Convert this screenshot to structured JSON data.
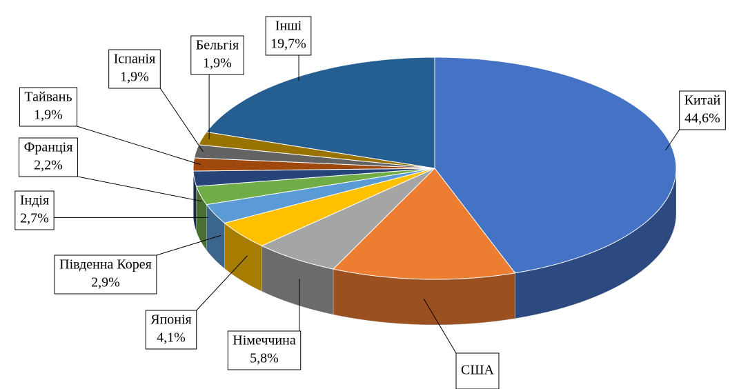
{
  "chart_data": {
    "type": "pie3d",
    "categories": [
      "Китай",
      "США",
      "Німеччина",
      "Японія",
      "Південна Корея",
      "Індія",
      "Франція",
      "Тайвань",
      "Іспанія",
      "Бельгія",
      "Інші"
    ],
    "values": [
      44.6,
      12.3,
      5.8,
      4.1,
      2.9,
      2.7,
      2.2,
      1.9,
      1.9,
      1.9,
      19.7
    ],
    "value_labels": [
      "44,6%",
      null,
      "5,8%",
      "4,1%",
      "2,9%",
      "2,7%",
      "2,2%",
      "1,9%",
      "1,9%",
      "1,9%",
      "19,7%"
    ],
    "colors": [
      "#4472c4",
      "#ed7d31",
      "#a5a5a5",
      "#ffc000",
      "#5b9bd5",
      "#70ad47",
      "#264478",
      "#9e480e",
      "#636363",
      "#997300",
      "#255e91"
    ]
  }
}
